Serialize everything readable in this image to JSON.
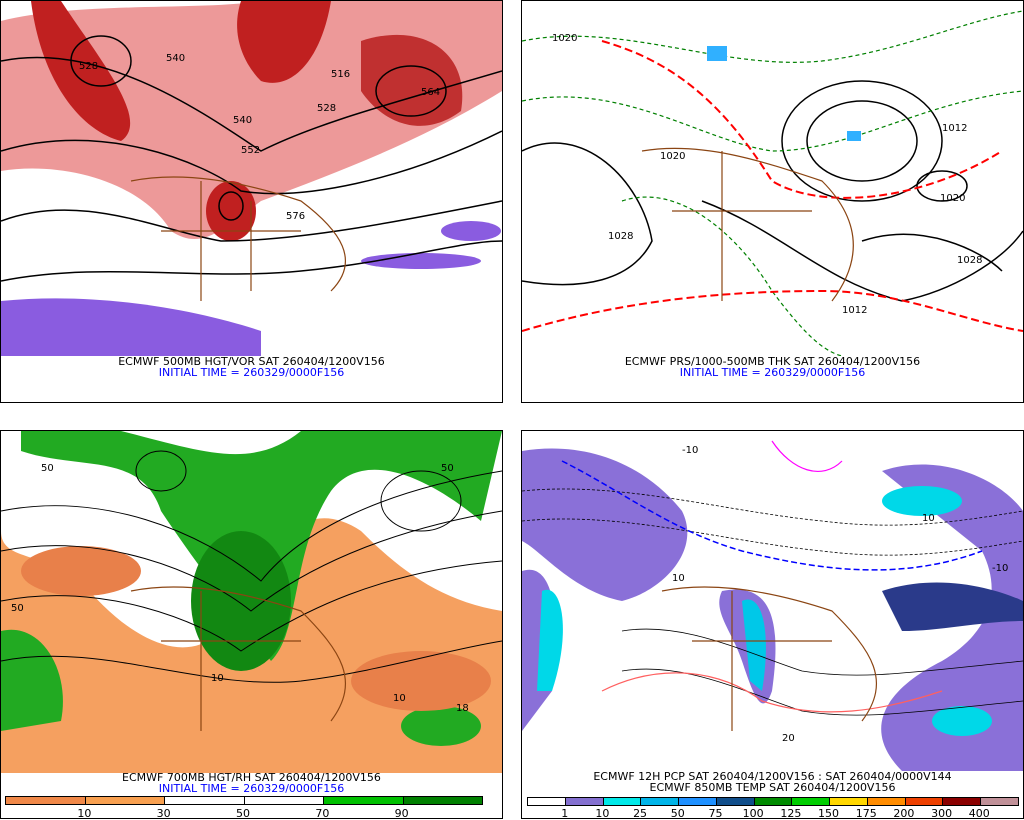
{
  "panels": [
    {
      "title": "ECMWF 500MB HGT/VOR SAT 260404/1200V156",
      "subtitle": "INITIAL TIME = 260329/0000F156"
    },
    {
      "title": "ECMWF PRS/1000-500MB THK SAT 260404/1200V156",
      "subtitle": "INITIAL TIME = 260329/0000F156"
    },
    {
      "title": "ECMWF 700MB HGT/RH SAT 260404/1200V156",
      "subtitle": "INITIAL TIME = 260329/0000F156",
      "colorbar": {
        "colors": [
          "#f08848",
          "#f8a050",
          "#ffffff",
          "#ffffff",
          "#00c000",
          "#008000"
        ],
        "labels": [
          "10",
          "30",
          "50",
          "70",
          "90"
        ]
      }
    },
    {
      "title": "ECMWF 12H PCP SAT 260404/1200V156 : SAT 260404/0000V144",
      "subtitle": "ECMWF 850MB TEMP SAT 260404/1200V156",
      "colorbar": {
        "colors": [
          "#ffffff",
          "#8470d0",
          "#00e8e8",
          "#00b4e8",
          "#1e90ff",
          "#104e8b",
          "#008b00",
          "#00cd00",
          "#ffd700",
          "#ff8c00",
          "#ee4000",
          "#8b0000",
          "#c09098"
        ],
        "labels": [
          "1",
          "10",
          "25",
          "50",
          "75",
          "100",
          "125",
          "150",
          "175",
          "200",
          "300",
          "400"
        ]
      }
    }
  ],
  "map_labels": {
    "p1": [
      "528",
      "540",
      "552",
      "516",
      "540",
      "528",
      "564",
      "576"
    ],
    "p2": [
      "1028",
      "1020",
      "1012",
      "1020",
      "1028",
      "1020",
      "1012"
    ],
    "p3": [
      "50",
      "50",
      "10",
      "10",
      "50",
      "18"
    ],
    "p4": [
      "-10",
      "-10",
      "10",
      "10",
      "20"
    ]
  }
}
